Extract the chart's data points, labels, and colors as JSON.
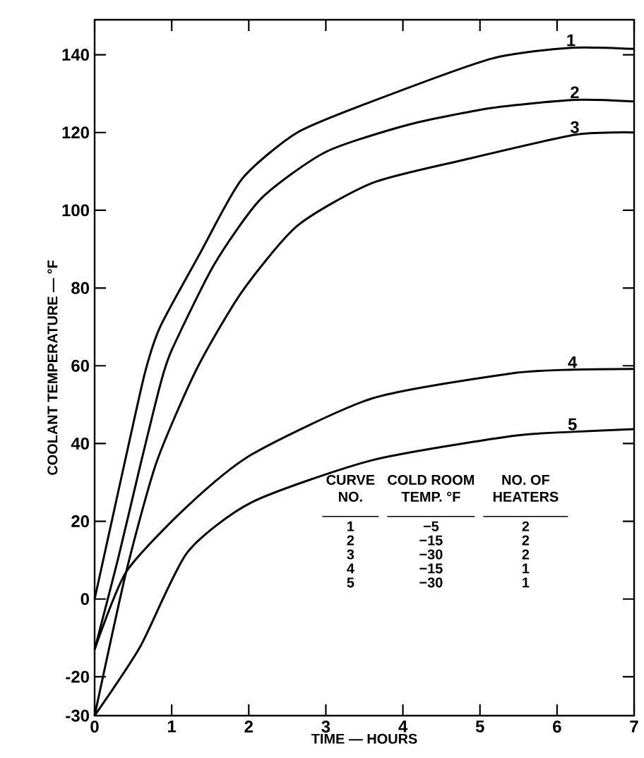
{
  "chart_data": {
    "type": "line",
    "xlabel": "TIME — HOURS",
    "ylabel": "COOLANT TEMPERATURE — °F",
    "xlim": [
      0,
      7
    ],
    "ylim": [
      -30,
      149
    ],
    "xticks": [
      0,
      1,
      2,
      3,
      4,
      5,
      6,
      7
    ],
    "yticks": [
      -30,
      -20,
      0,
      20,
      40,
      60,
      80,
      100,
      120,
      140
    ],
    "series": [
      {
        "name": "1",
        "color": "#000000",
        "x": [
          0,
          0.2,
          0.4,
          0.65,
          0.85,
          1.37,
          1.91,
          2.63,
          3.6,
          5.15,
          6.18,
          7
        ],
        "values": [
          0,
          18,
          36,
          58,
          70,
          89,
          108,
          120,
          128,
          139,
          141.8,
          141.5
        ]
      },
      {
        "name": "2",
        "color": "#000000",
        "x": [
          0,
          0.3,
          0.6,
          0.85,
          1.0,
          1.55,
          2.16,
          3,
          4.07,
          5.15,
          6.23,
          7
        ],
        "values": [
          -13,
          10,
          35,
          55,
          64,
          86,
          103,
          115,
          122,
          126.3,
          128.4,
          128
        ]
      },
      {
        "name": "3",
        "color": "#000000",
        "x": [
          0,
          0.41,
          0.8,
          1.32,
          1.91,
          2.63,
          3.6,
          4.8,
          6.23,
          7
        ],
        "values": [
          -30,
          7,
          35,
          59,
          79,
          96,
          107,
          113,
          119.4,
          120
        ]
      },
      {
        "name": "4",
        "color": "#000000",
        "x": [
          0,
          0.41,
          1.2,
          2.04,
          3.6,
          5.4,
          6.2,
          7
        ],
        "values": [
          -13,
          7,
          23.8,
          37.2,
          51.6,
          58,
          59,
          59.2
        ]
      },
      {
        "name": "5",
        "color": "#000000",
        "x": [
          0,
          0.59,
          1.2,
          2.04,
          3.6,
          5.4,
          6.2,
          7
        ],
        "values": [
          -30,
          -12.3,
          11.9,
          24.9,
          35.7,
          41.9,
          43,
          43.7
        ]
      }
    ],
    "annotations": [
      "CURVE NO.",
      "COLD ROOM TEMP. °F",
      "NO. OF HEATERS",
      "1",
      "−5",
      "2",
      "2",
      "−15",
      "2",
      "3",
      "−30",
      "2",
      "4",
      "−15",
      "1",
      "5",
      "−30",
      "1"
    ]
  }
}
